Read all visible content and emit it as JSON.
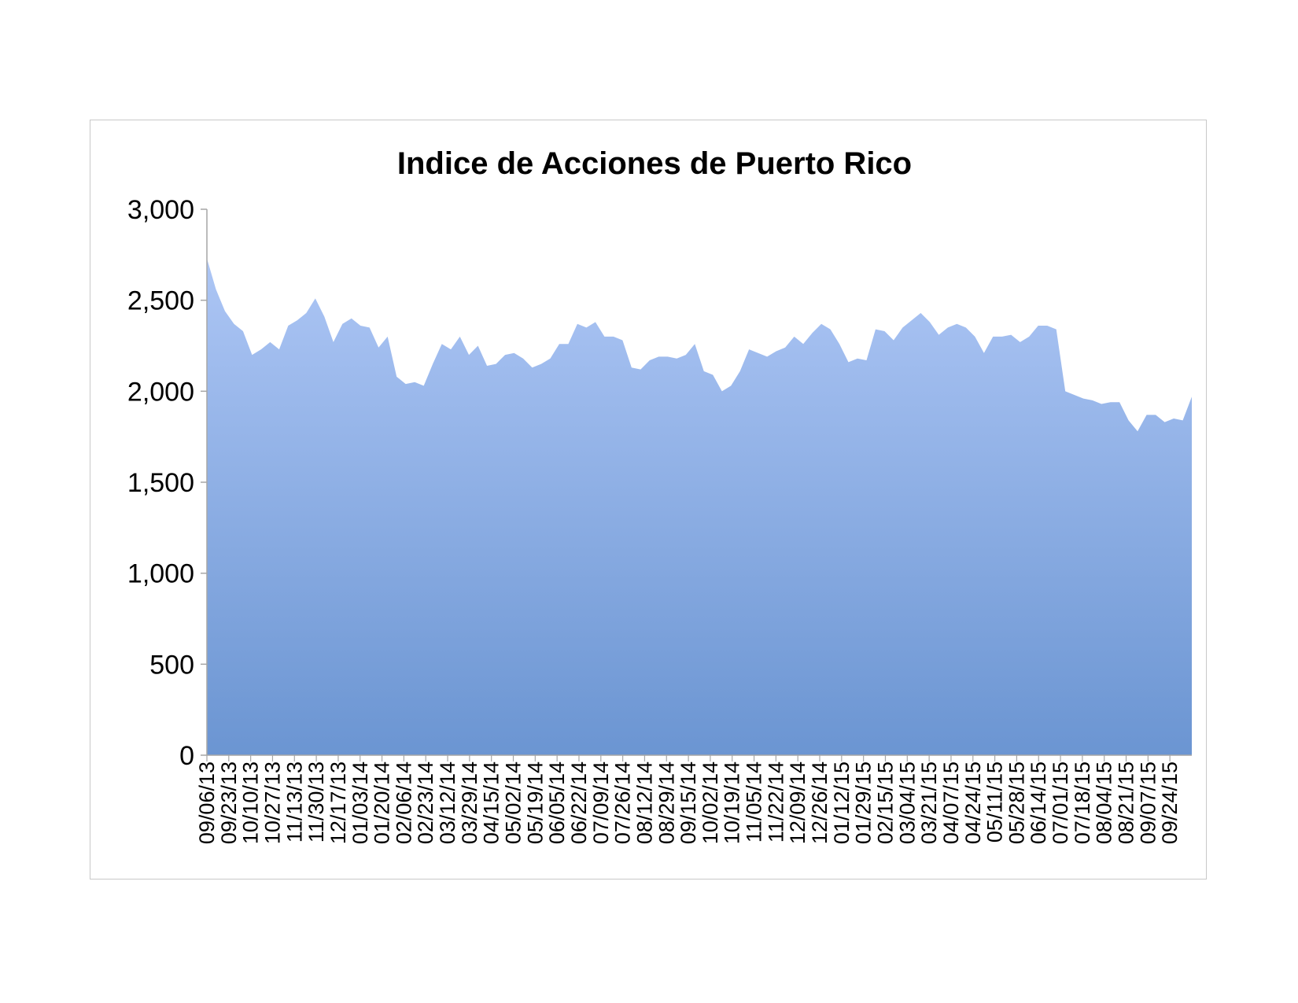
{
  "chart_data": {
    "type": "area",
    "title": "Indice de Acciones de Puerto Rico",
    "xlabel": "",
    "ylabel": "",
    "ylim": [
      0,
      3000
    ],
    "yticks": [
      0,
      500,
      1000,
      1500,
      2000,
      2500,
      3000
    ],
    "ytick_labels": [
      "0",
      "500",
      "1,000",
      "1,500",
      "2,000",
      "2,500",
      "3,000"
    ],
    "xtick_labels": [
      "09/06/13",
      "09/23/13",
      "10/10/13",
      "10/27/13",
      "11/13/13",
      "11/30/13",
      "12/17/13",
      "01/03/14",
      "01/20/14",
      "02/06/14",
      "02/23/14",
      "03/12/14",
      "03/29/14",
      "04/15/14",
      "05/02/14",
      "05/19/14",
      "06/05/14",
      "06/22/14",
      "07/09/14",
      "07/26/14",
      "08/12/14",
      "08/29/14",
      "09/15/14",
      "10/02/14",
      "10/19/14",
      "11/05/14",
      "11/22/14",
      "12/09/14",
      "12/26/14",
      "01/12/15",
      "01/29/15",
      "02/15/15",
      "03/04/15",
      "03/21/15",
      "04/07/15",
      "04/24/15",
      "05/11/15",
      "05/28/15",
      "06/14/15",
      "07/01/15",
      "07/18/15",
      "08/04/15",
      "08/21/15",
      "09/07/15",
      "09/24/15"
    ],
    "grid": false,
    "legend": "none",
    "colors": {
      "fill_top": "#adc6f5",
      "fill_bottom": "#6b95d2",
      "axis": "#a6a6a6"
    },
    "series": [
      {
        "values": [
          2730,
          2560,
          2440,
          2370,
          2330,
          2200,
          2230,
          2270,
          2230,
          2360,
          2390,
          2430,
          2510,
          2410,
          2270,
          2370,
          2400,
          2360,
          2350,
          2240,
          2300,
          2080,
          2040,
          2050,
          2030,
          2150,
          2260,
          2230,
          2300,
          2200,
          2250,
          2140,
          2150,
          2200,
          2210,
          2180,
          2130,
          2150,
          2180,
          2260,
          2260,
          2370,
          2350,
          2380,
          2300,
          2300,
          2280,
          2130,
          2120,
          2170,
          2190,
          2190,
          2180,
          2200,
          2260,
          2110,
          2090,
          2000,
          2030,
          2110,
          2230,
          2210,
          2190,
          2220,
          2240,
          2300,
          2260,
          2320,
          2370,
          2340,
          2260,
          2160,
          2180,
          2170,
          2340,
          2330,
          2280,
          2350,
          2390,
          2430,
          2380,
          2310,
          2350,
          2370,
          2350,
          2300,
          2210,
          2300,
          2300,
          2310,
          2270,
          2300,
          2360,
          2360,
          2340,
          2000,
          1980,
          1960,
          1950,
          1930,
          1940,
          1940,
          1840,
          1780,
          1870,
          1870,
          1830,
          1850,
          1840,
          1970
        ]
      }
    ]
  }
}
